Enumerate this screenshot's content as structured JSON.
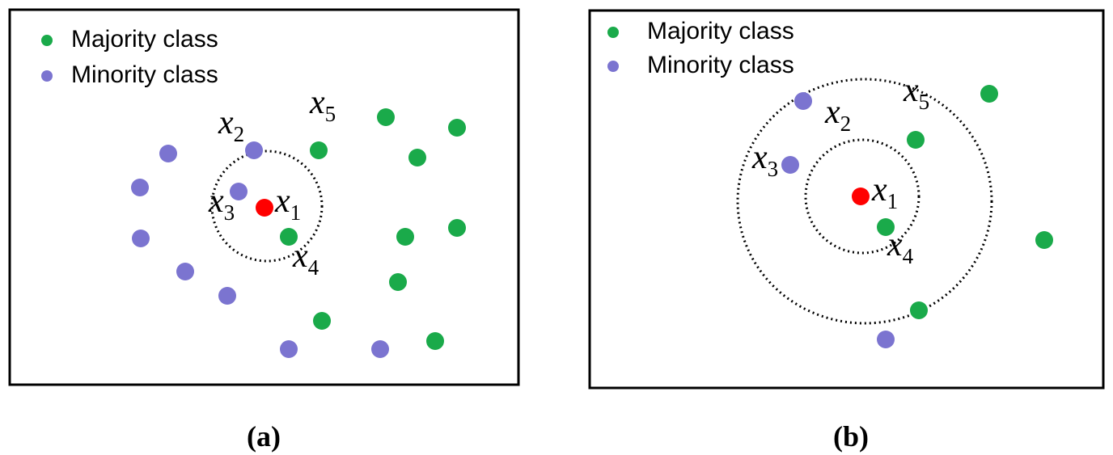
{
  "panels": [
    {
      "legend": [
        "Majority class",
        "Minority class"
      ],
      "labels": [
        {
          "base": "x",
          "sub": "1"
        },
        {
          "base": "x",
          "sub": "2"
        },
        {
          "base": "x",
          "sub": "3"
        },
        {
          "base": "x",
          "sub": "4"
        },
        {
          "base": "x",
          "sub": "5"
        }
      ],
      "caption": "(a)"
    },
    {
      "legend": [
        "Majority class",
        "Minority class"
      ],
      "labels": [
        {
          "base": "x",
          "sub": "1"
        },
        {
          "base": "x",
          "sub": "2"
        },
        {
          "base": "x",
          "sub": "3"
        },
        {
          "base": "x",
          "sub": "4"
        },
        {
          "base": "x",
          "sub": "5"
        }
      ],
      "caption": "(b)"
    }
  ]
}
